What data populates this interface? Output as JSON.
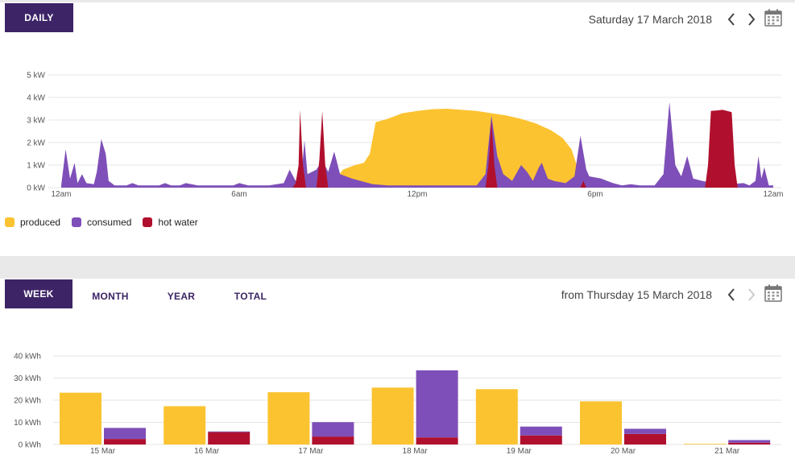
{
  "daily": {
    "tab_label": "DAILY",
    "date_label": "Saturday 17 March 2018",
    "icons": {
      "prev": "chevron-left-icon",
      "next": "chevron-right-icon",
      "calendar": "calendar-icon"
    }
  },
  "weekly": {
    "tabs": [
      {
        "label": "WEEK",
        "active": true
      },
      {
        "label": "MONTH",
        "active": false
      },
      {
        "label": "YEAR",
        "active": false
      },
      {
        "label": "TOTAL",
        "active": false
      }
    ],
    "date_label": "from Thursday 15 March 2018",
    "icons": {
      "prev": "chevron-left-icon",
      "next": "chevron-right-icon",
      "calendar": "calendar-icon"
    }
  },
  "colors": {
    "produced": "#fcc331",
    "consumed": "#7e4fb8",
    "hot_water": "#b0102d",
    "brand": "#3d2466",
    "grid": "#e4e4e4"
  },
  "chart_data": [
    {
      "type": "area",
      "ylabel": "",
      "ylim": [
        0,
        5
      ],
      "y_ticks": [
        "0 kW",
        "1 kW",
        "2 kW",
        "3 kW",
        "4 kW",
        "5 kW"
      ],
      "x_ticks": [
        {
          "hour": 0,
          "label": "12am"
        },
        {
          "hour": 6,
          "label": "6am"
        },
        {
          "hour": 12,
          "label": "12pm"
        },
        {
          "hour": 18,
          "label": "6pm"
        },
        {
          "hour": 24,
          "label": "12am"
        }
      ],
      "legend": [
        "produced",
        "consumed",
        "hot water"
      ],
      "series": [
        {
          "name": "produced",
          "points": [
            [
              0,
              0
            ],
            [
              8.9,
              0
            ],
            [
              9.2,
              0.3
            ],
            [
              9.5,
              0.8
            ],
            [
              9.9,
              1.0
            ],
            [
              10.2,
              1.1
            ],
            [
              10.4,
              1.5
            ],
            [
              10.6,
              2.9
            ],
            [
              11.0,
              3.05
            ],
            [
              11.5,
              3.3
            ],
            [
              12.0,
              3.4
            ],
            [
              12.5,
              3.48
            ],
            [
              13.0,
              3.5
            ],
            [
              13.5,
              3.45
            ],
            [
              14.0,
              3.4
            ],
            [
              14.5,
              3.3
            ],
            [
              15.0,
              3.2
            ],
            [
              15.5,
              3.05
            ],
            [
              16.0,
              2.85
            ],
            [
              16.5,
              2.55
            ],
            [
              16.9,
              2.2
            ],
            [
              17.2,
              1.7
            ],
            [
              17.4,
              0.9
            ],
            [
              17.6,
              0.6
            ],
            [
              17.9,
              0.3
            ],
            [
              18.2,
              0
            ],
            [
              24,
              0
            ]
          ]
        },
        {
          "name": "consumed",
          "points": [
            [
              0,
              0.1
            ],
            [
              0.15,
              1.7
            ],
            [
              0.3,
              0.4
            ],
            [
              0.45,
              1.1
            ],
            [
              0.55,
              0.2
            ],
            [
              0.7,
              0.6
            ],
            [
              0.85,
              0.2
            ],
            [
              1.1,
              0.15
            ],
            [
              1.2,
              0.7
            ],
            [
              1.35,
              2.15
            ],
            [
              1.5,
              1.5
            ],
            [
              1.6,
              0.3
            ],
            [
              1.8,
              0.1
            ],
            [
              2.2,
              0.1
            ],
            [
              2.4,
              0.2
            ],
            [
              2.6,
              0.1
            ],
            [
              3.3,
              0.1
            ],
            [
              3.5,
              0.2
            ],
            [
              3.7,
              0.1
            ],
            [
              4.0,
              0.1
            ],
            [
              4.2,
              0.2
            ],
            [
              4.6,
              0.1
            ],
            [
              5.8,
              0.1
            ],
            [
              6.0,
              0.2
            ],
            [
              6.3,
              0.1
            ],
            [
              7.0,
              0.1
            ],
            [
              7.5,
              0.2
            ],
            [
              7.7,
              0.8
            ],
            [
              7.9,
              0.3
            ],
            [
              8.1,
              0.5
            ],
            [
              8.2,
              2.1
            ],
            [
              8.3,
              0.6
            ],
            [
              8.6,
              0.8
            ],
            [
              8.8,
              1.2
            ],
            [
              9.0,
              0.7
            ],
            [
              9.2,
              1.6
            ],
            [
              9.3,
              1.1
            ],
            [
              9.4,
              0.6
            ],
            [
              9.8,
              0.4
            ],
            [
              10.5,
              0.15
            ],
            [
              11,
              0.1
            ],
            [
              12,
              0.1
            ],
            [
              13,
              0.1
            ],
            [
              14,
              0.1
            ],
            [
              14.3,
              0.6
            ],
            [
              14.5,
              3.2
            ],
            [
              14.7,
              1.4
            ],
            [
              14.9,
              0.6
            ],
            [
              15.2,
              0.3
            ],
            [
              15.5,
              1.0
            ],
            [
              15.7,
              0.7
            ],
            [
              15.9,
              0.3
            ],
            [
              16.1,
              0.9
            ],
            [
              16.2,
              1.1
            ],
            [
              16.4,
              0.4
            ],
            [
              16.6,
              0.3
            ],
            [
              17.0,
              0.2
            ],
            [
              17.3,
              0.5
            ],
            [
              17.5,
              2.3
            ],
            [
              17.7,
              0.8
            ],
            [
              17.8,
              0.5
            ],
            [
              18.2,
              0.4
            ],
            [
              18.4,
              0.3
            ],
            [
              18.6,
              0.2
            ],
            [
              18.9,
              0.1
            ],
            [
              19.2,
              0.15
            ],
            [
              19.5,
              0.1
            ],
            [
              20.0,
              0.1
            ],
            [
              20.3,
              0.6
            ],
            [
              20.5,
              3.8
            ],
            [
              20.7,
              1.0
            ],
            [
              20.9,
              0.5
            ],
            [
              21.1,
              1.4
            ],
            [
              21.3,
              0.4
            ],
            [
              21.6,
              0.3
            ],
            [
              22.0,
              0.2
            ],
            [
              22.5,
              0.15
            ],
            [
              23.0,
              0.2
            ],
            [
              23.2,
              0.1
            ],
            [
              23.4,
              0.3
            ],
            [
              23.5,
              1.4
            ],
            [
              23.6,
              0.4
            ],
            [
              23.7,
              0.9
            ],
            [
              23.85,
              0.1
            ],
            [
              24,
              0.1
            ]
          ]
        },
        {
          "name": "hot water",
          "points": [
            [
              0,
              0
            ],
            [
              7.8,
              0
            ],
            [
              7.9,
              0.2
            ],
            [
              8.0,
              1.0
            ],
            [
              8.05,
              3.45
            ],
            [
              8.15,
              1.0
            ],
            [
              8.25,
              0
            ],
            [
              8.6,
              0
            ],
            [
              8.7,
              1.2
            ],
            [
              8.8,
              3.4
            ],
            [
              8.9,
              1.0
            ],
            [
              9.0,
              0
            ],
            [
              14.3,
              0
            ],
            [
              14.4,
              1.0
            ],
            [
              14.5,
              3.0
            ],
            [
              14.6,
              1.0
            ],
            [
              14.7,
              0
            ],
            [
              17.5,
              0
            ],
            [
              17.6,
              0.3
            ],
            [
              17.7,
              0
            ],
            [
              21.7,
              0
            ],
            [
              21.8,
              1.0
            ],
            [
              21.9,
              3.4
            ],
            [
              22.3,
              3.45
            ],
            [
              22.6,
              3.35
            ],
            [
              22.7,
              1.0
            ],
            [
              22.8,
              0
            ],
            [
              24,
              0
            ]
          ]
        }
      ]
    },
    {
      "type": "bar",
      "ylabel": "",
      "ylim": [
        0,
        40
      ],
      "y_ticks": [
        "0 kWh",
        "10 kWh",
        "20 kWh",
        "30 kWh",
        "40 kWh"
      ],
      "categories": [
        "15 Mar",
        "16 Mar",
        "17 Mar",
        "18 Mar",
        "19 Mar",
        "20 Mar",
        "21 Mar"
      ],
      "series": [
        {
          "name": "produced",
          "values": [
            23.4,
            17.3,
            23.6,
            25.7,
            25.0,
            19.5,
            0.3
          ]
        },
        {
          "name": "consumed",
          "values": [
            5.0,
            0.3,
            6.5,
            30.3,
            4.0,
            2.3,
            1.2
          ]
        },
        {
          "name": "hot water",
          "values": [
            2.5,
            5.6,
            3.6,
            3.2,
            4.1,
            4.8,
            0.8
          ]
        }
      ]
    }
  ]
}
